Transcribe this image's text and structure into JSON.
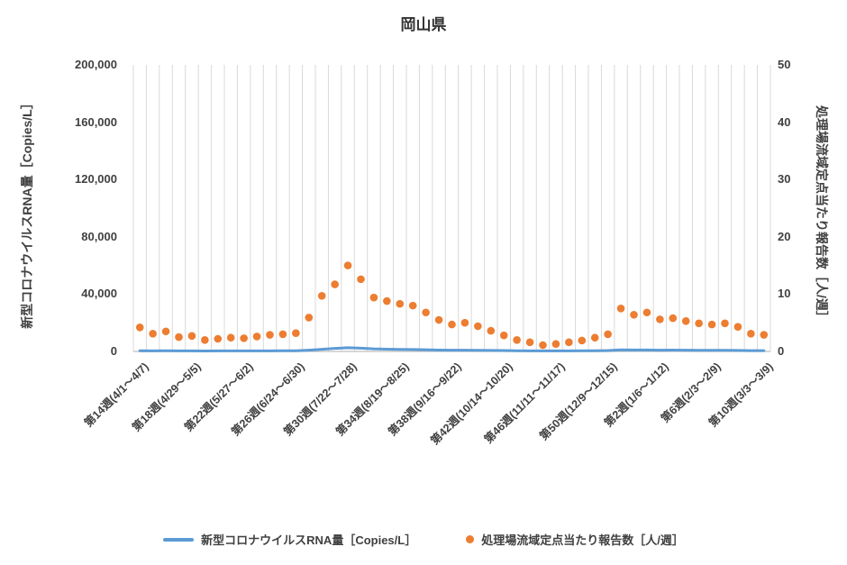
{
  "title": "岡山県",
  "colors": {
    "grid": "#D9D9D9",
    "axis_line": "#BFBFBF",
    "text": "#404040",
    "rna_line": "#5B9BD5",
    "report_dot": "#ED7D31"
  },
  "chart_data": {
    "type": "line",
    "title": "岡山県",
    "gridlines": "vertical-only",
    "legend_position": "bottom",
    "x_label_every": 4,
    "x_tick_labels": [
      "第14週(4/1〜4/7)",
      "第18週(4/29〜5/5)",
      "第22週(5/27〜6/2)",
      "第26週(6/24〜6/30)",
      "第30週(7/22〜7/28)",
      "第34週(8/19〜8/25)",
      "第38週(9/16〜9/22)",
      "第42週(10/14〜10/20)",
      "第46週(11/11〜11/17)",
      "第50週(12/9〜12/15)",
      "第2週(1/6〜1/12)",
      "第6週(2/3〜2/9)",
      "第10週(3/3〜3/9)"
    ],
    "left_axis": {
      "title": "新型コロナウイルスRNA量［Copies/L］",
      "min": 0,
      "max": 200000,
      "step": 40000,
      "tick_labels": [
        "0",
        "40,000",
        "80,000",
        "120,000",
        "160,000",
        "200,000"
      ]
    },
    "right_axis": {
      "title": "処理場流域定点当たり報告数［人/週］",
      "min": 0,
      "max": 50,
      "step": 10,
      "tick_labels": [
        "0",
        "10",
        "20",
        "30",
        "40",
        "50"
      ]
    },
    "series": [
      {
        "name": "新型コロナウイルスRNA量［Copies/L］",
        "chart_type": "line",
        "axis": "left",
        "color": "#5B9BD5",
        "values": [
          500,
          420,
          450,
          380,
          400,
          350,
          360,
          380,
          370,
          400,
          430,
          450,
          480,
          900,
          1500,
          2100,
          2600,
          2300,
          1800,
          1600,
          1450,
          1350,
          1150,
          950,
          850,
          880,
          800,
          700,
          600,
          500,
          430,
          380,
          400,
          420,
          450,
          500,
          600,
          1100,
          1000,
          1050,
          900,
          920,
          860,
          800,
          780,
          800,
          720,
          580,
          520
        ]
      },
      {
        "name": "処理場流域定点当たり報告数［人/週］",
        "chart_type": "scatter",
        "axis": "right",
        "color": "#ED7D31",
        "values": [
          4.2,
          3.1,
          3.5,
          2.5,
          2.7,
          2.0,
          2.2,
          2.4,
          2.3,
          2.6,
          2.9,
          3.0,
          3.2,
          5.9,
          9.7,
          11.7,
          15.0,
          12.6,
          9.4,
          8.8,
          8.3,
          8.0,
          6.8,
          5.5,
          4.7,
          5.0,
          4.4,
          3.6,
          2.8,
          2.0,
          1.6,
          1.1,
          1.3,
          1.6,
          1.9,
          2.4,
          3.0,
          7.5,
          6.4,
          6.8,
          5.6,
          5.8,
          5.3,
          4.9,
          4.7,
          4.9,
          4.3,
          3.1,
          2.9
        ]
      }
    ]
  }
}
